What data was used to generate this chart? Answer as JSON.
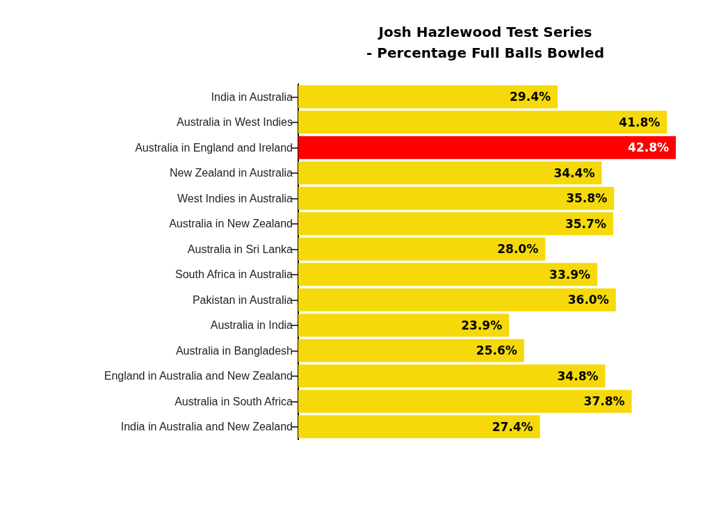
{
  "chart_data": {
    "type": "bar",
    "orientation": "horizontal",
    "title": "Josh Hazlewood Test Series\n- Percentage Full Balls Bowled",
    "categories": [
      "India in Australia",
      "Australia in West Indies",
      "Australia in England and Ireland",
      "New Zealand in Australia",
      "West Indies in Australia",
      "Australia in New Zealand",
      "Australia in Sri Lanka",
      "South Africa in Australia",
      "Pakistan in Australia",
      "Australia in India",
      "Australia in Bangladesh",
      "England in Australia and New Zealand",
      "Australia in South Africa",
      "India in Australia and New Zealand"
    ],
    "values": [
      29.4,
      41.8,
      42.8,
      34.4,
      35.8,
      35.7,
      28.0,
      33.9,
      36.0,
      23.9,
      25.6,
      34.8,
      37.8,
      27.4
    ],
    "value_labels": [
      "29.4%",
      "41.8%",
      "42.8%",
      "34.4%",
      "35.8%",
      "35.7%",
      "28.0%",
      "33.9%",
      "36.0%",
      "23.9%",
      "25.6%",
      "34.8%",
      "37.8%",
      "27.4%"
    ],
    "colors": [
      "#f5d90a",
      "#f5d90a",
      "#ff0000",
      "#f5d90a",
      "#f5d90a",
      "#f5d90a",
      "#f5d90a",
      "#f5d90a",
      "#f5d90a",
      "#f5d90a",
      "#f5d90a",
      "#f5d90a",
      "#f5d90a",
      "#f5d90a"
    ]
  }
}
